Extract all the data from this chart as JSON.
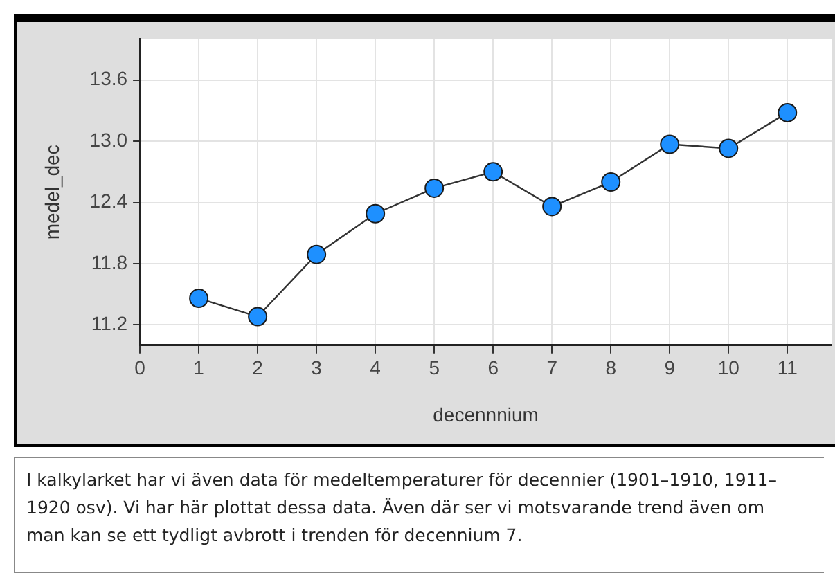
{
  "chart_data": {
    "type": "line",
    "xlabel": "decennnium",
    "ylabel": "medel_dec",
    "x": [
      1,
      2,
      3,
      4,
      5,
      6,
      7,
      8,
      9,
      10,
      11
    ],
    "series": [
      {
        "color": "#1e90ff",
        "values": [
          11.46,
          11.28,
          11.89,
          12.29,
          12.54,
          12.7,
          12.36,
          12.6,
          12.97,
          12.93,
          13.28
        ]
      }
    ],
    "xlim": [
      0,
      11.75
    ],
    "xticks": [
      0,
      1,
      2,
      3,
      4,
      5,
      6,
      7,
      8,
      9,
      10,
      11
    ],
    "ylim": [
      11.0,
      14.0
    ],
    "yticks": [
      11.2,
      11.8,
      12.4,
      {
        "value": 13,
        "label": "13.0"
      },
      13.6
    ],
    "grid": true,
    "legend": false,
    "marker": "circle",
    "line_style": "solid",
    "annotations": [
      "I  kalkylarket har vi även data för medeltemperaturer  för decennier (1901–1910, 1911–1920  osv). Vi har här plottat dessa data. Även där ser vi motsvarande trend även om man kan se ett tydligt avbrott i trenden för decennium 7."
    ]
  }
}
